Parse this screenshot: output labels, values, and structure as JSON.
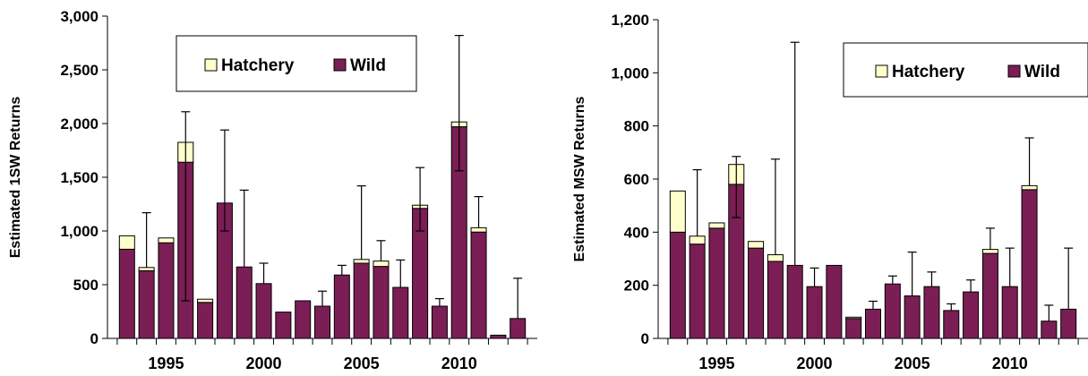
{
  "colors": {
    "hatchery": "#FFFFCC",
    "wild": "#7B1E55",
    "outline": "#000000"
  },
  "chart_data": [
    {
      "type": "bar",
      "stacked": true,
      "ylabel": "Estimated 1SW Returns",
      "ylim": [
        0,
        3000
      ],
      "yticks": [
        0,
        500,
        1000,
        1500,
        2000,
        2500,
        3000
      ],
      "ytick_labels": [
        "0",
        "500",
        "1,000",
        "1,500",
        "2,000",
        "2,500",
        "3,000"
      ],
      "xlim": [
        1992,
        2014
      ],
      "xticks": [
        1995,
        2000,
        2005,
        2010
      ],
      "xtick_labels": [
        "1995",
        "2000",
        "2005",
        "2010"
      ],
      "legend": [
        "Hatchery",
        "Wild"
      ],
      "legend_placement": "top-center",
      "categories": [
        1993,
        1994,
        1995,
        1996,
        1997,
        1998,
        1999,
        2000,
        2001,
        2002,
        2003,
        2004,
        2005,
        2006,
        2007,
        2008,
        2009,
        2010,
        2011,
        2012,
        2013
      ],
      "series": [
        {
          "name": "Wild",
          "values": [
            830,
            630,
            890,
            1640,
            335,
            1260,
            665,
            510,
            245,
            350,
            300,
            590,
            700,
            670,
            475,
            1210,
            300,
            1970,
            990,
            30,
            185
          ]
        },
        {
          "name": "Hatchery",
          "values": [
            125,
            30,
            45,
            185,
            30,
            0,
            0,
            0,
            0,
            0,
            0,
            0,
            35,
            50,
            0,
            30,
            0,
            45,
            40,
            0,
            0
          ]
        }
      ],
      "error_high": [
        null,
        1170,
        null,
        2110,
        null,
        1940,
        1380,
        700,
        null,
        null,
        440,
        680,
        1420,
        910,
        730,
        1590,
        370,
        2820,
        1320,
        null,
        560
      ],
      "error_low": [
        null,
        null,
        null,
        350,
        null,
        1000,
        null,
        null,
        null,
        null,
        null,
        null,
        null,
        null,
        null,
        1000,
        null,
        1560,
        null,
        null,
        null
      ]
    },
    {
      "type": "bar",
      "stacked": true,
      "ylabel": "Estimated MSW Returns",
      "ylim": [
        0,
        1200
      ],
      "yticks": [
        0,
        200,
        400,
        600,
        800,
        1000,
        1200
      ],
      "ytick_labels": [
        "0",
        "200",
        "400",
        "600",
        "800",
        "1,000",
        "1,200"
      ],
      "xlim": [
        1992,
        2014
      ],
      "xticks": [
        1995,
        2000,
        2005,
        2010
      ],
      "xtick_labels": [
        "1995",
        "2000",
        "2005",
        "2010"
      ],
      "legend": [
        "Hatchery",
        "Wild"
      ],
      "legend_placement": "top-right",
      "categories": [
        1993,
        1994,
        1995,
        1996,
        1997,
        1998,
        1999,
        2000,
        2001,
        2002,
        2003,
        2004,
        2005,
        2006,
        2007,
        2008,
        2009,
        2010,
        2011,
        2012,
        2013
      ],
      "series": [
        {
          "name": "Wild",
          "values": [
            400,
            355,
            415,
            580,
            340,
            290,
            275,
            195,
            275,
            75,
            110,
            205,
            160,
            195,
            105,
            175,
            320,
            195,
            560,
            65,
            110
          ]
        },
        {
          "name": "Hatchery",
          "values": [
            155,
            30,
            20,
            75,
            25,
            25,
            0,
            0,
            0,
            5,
            0,
            0,
            0,
            0,
            0,
            0,
            15,
            0,
            15,
            0,
            0
          ]
        }
      ],
      "error_high": [
        null,
        635,
        null,
        685,
        null,
        675,
        1115,
        265,
        null,
        null,
        140,
        235,
        325,
        250,
        130,
        220,
        415,
        340,
        755,
        125,
        340
      ],
      "error_low": [
        null,
        null,
        null,
        455,
        null,
        null,
        null,
        null,
        null,
        null,
        null,
        null,
        null,
        null,
        null,
        null,
        null,
        null,
        null,
        null,
        null
      ]
    }
  ]
}
